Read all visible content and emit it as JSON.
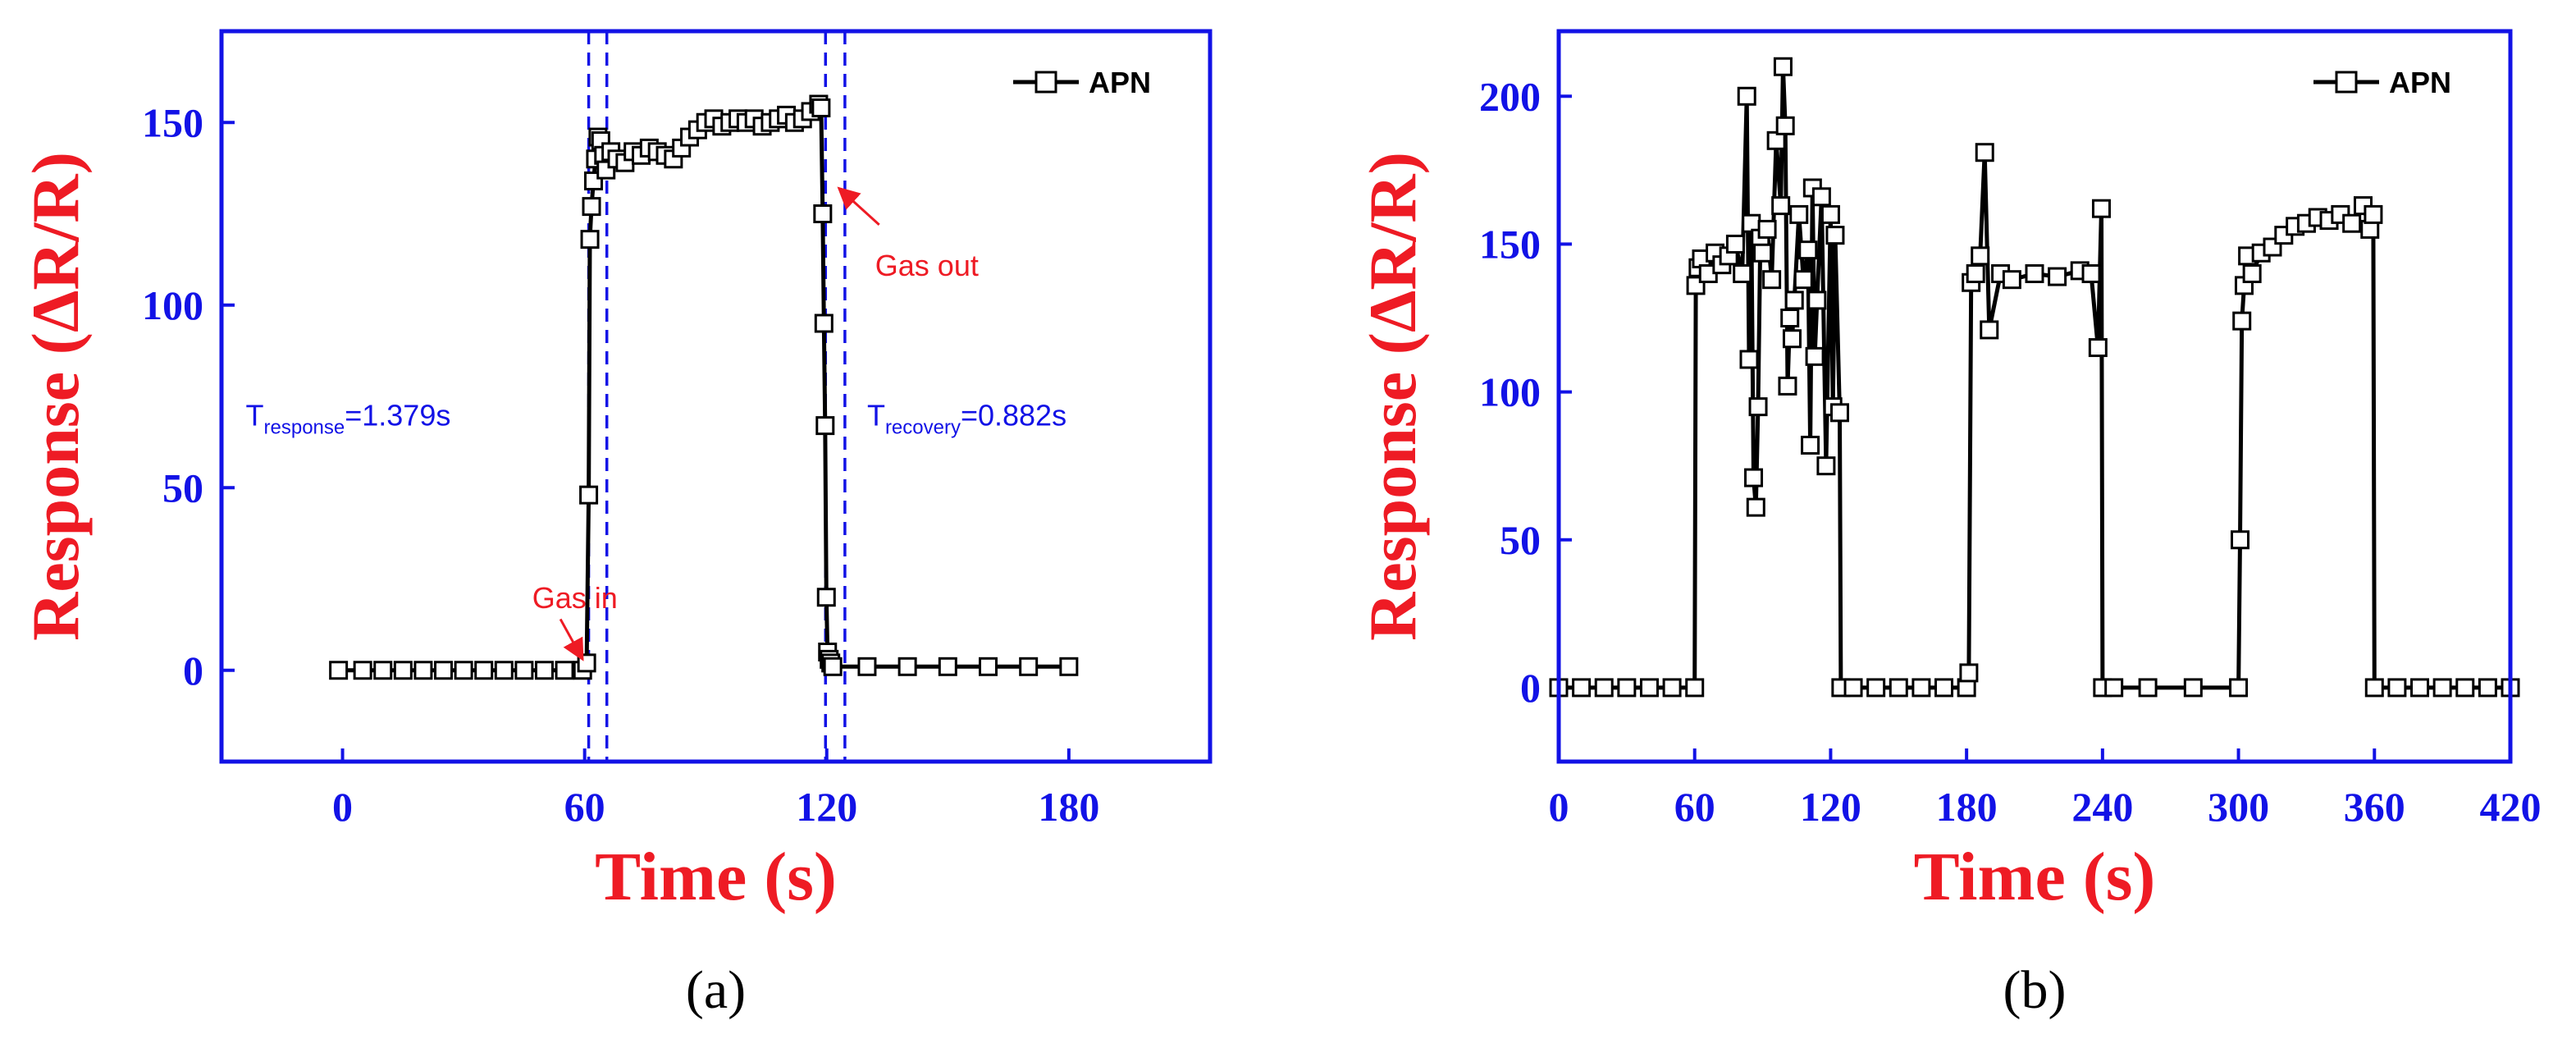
{
  "chart_data": [
    {
      "panel_label": "(a)",
      "type": "line",
      "xlabel": "Time (s)",
      "ylabel": "Response (ΔR/R)",
      "xlim": [
        -30,
        215
      ],
      "ylim": [
        -25,
        175
      ],
      "xticks": [
        0,
        60,
        120,
        180
      ],
      "yticks": [
        0,
        50,
        100,
        150
      ],
      "legend": {
        "placement": "top-right",
        "entries": [
          "APN"
        ]
      },
      "colors": {
        "axis": "#1212e6",
        "axis_title": "#ee1b24",
        "series": "#000000",
        "annotation_red": "#ee1b24",
        "annotation_blue": "#1212e6"
      },
      "series": [
        {
          "name": "APN",
          "x": [
            -1,
            5,
            10,
            15,
            20,
            25,
            30,
            35,
            40,
            45,
            50,
            55,
            59.5,
            60.5,
            61.0,
            61.3,
            61.7,
            62.2,
            62.7,
            63.3,
            64.0,
            64.7,
            65.3,
            66.5,
            68,
            70,
            72,
            74,
            76,
            78,
            80,
            82,
            84,
            86,
            88,
            90,
            92,
            94,
            96,
            98,
            100,
            102,
            104,
            106,
            108,
            110,
            112,
            114,
            116,
            118,
            118.6,
            119.0,
            119.3,
            119.6,
            119.9,
            120.2,
            120.6,
            121.0,
            121.5,
            130,
            140,
            150,
            160,
            170,
            180
          ],
          "y": [
            0,
            0,
            0,
            0,
            0,
            0,
            0,
            0,
            0,
            0,
            0,
            0,
            0,
            2,
            48,
            118,
            127,
            134,
            140,
            146,
            145,
            141,
            137,
            142,
            140,
            139,
            142,
            141,
            143,
            142,
            141,
            140,
            143,
            146,
            148,
            150,
            151,
            149,
            150,
            151,
            150,
            151,
            149,
            150,
            151,
            152,
            150,
            151,
            153,
            155,
            154,
            125,
            95,
            67,
            20,
            5,
            3,
            2,
            1,
            1,
            1,
            1,
            1,
            1,
            1
          ]
        }
      ],
      "annotations": [
        {
          "text": "Gas in",
          "x": 60
        },
        {
          "text": "Gas out",
          "x": 120
        },
        {
          "text_main": "T",
          "text_sub": "response",
          "text_value": "=1.379s"
        },
        {
          "text_main": "T",
          "text_sub": "recovery",
          "text_value": "=0.882s"
        }
      ],
      "vlines": [
        61,
        65.5,
        119.7,
        124.5
      ]
    },
    {
      "panel_label": "(b)",
      "type": "line",
      "xlabel": "Time (s)",
      "ylabel": "Response (ΔR/R)",
      "xlim": [
        0,
        420
      ],
      "ylim": [
        -25,
        222
      ],
      "xticks": [
        0,
        60,
        120,
        180,
        240,
        300,
        360,
        420
      ],
      "yticks": [
        0,
        50,
        100,
        150,
        200
      ],
      "legend": {
        "placement": "top-right",
        "entries": [
          "APN"
        ]
      },
      "colors": {
        "axis": "#1212e6",
        "axis_title": "#ee1b24",
        "series": "#000000"
      },
      "series": [
        {
          "name": "APN",
          "x": [
            0,
            10,
            20,
            30,
            40,
            50,
            60,
            60.5,
            61.5,
            63,
            66,
            69,
            72,
            75,
            78,
            81,
            83,
            84,
            85,
            86,
            87,
            88,
            89,
            90,
            92,
            94,
            96,
            98,
            99,
            100,
            101,
            102,
            103,
            104,
            106,
            108,
            110,
            111,
            112,
            113,
            114,
            116,
            118,
            120,
            121,
            122,
            124,
            124.5,
            130,
            140,
            150,
            160,
            170,
            180,
            181,
            182,
            184,
            186,
            188,
            190,
            195,
            200,
            210,
            220,
            230,
            235,
            238,
            239.5,
            240,
            245,
            260,
            280,
            300,
            300.7,
            301.5,
            302.5,
            304,
            306,
            310,
            315,
            320,
            325,
            330,
            335,
            340,
            345,
            350,
            355,
            358,
            359.5,
            360,
            370,
            380,
            390,
            400,
            410,
            420
          ],
          "y": [
            0,
            0,
            0,
            0,
            0,
            0,
            0,
            136,
            142,
            145,
            140,
            147,
            143,
            146,
            150,
            140,
            200,
            111,
            157,
            71,
            61,
            95,
            152,
            147,
            155,
            138,
            185,
            163,
            210,
            190,
            102,
            125,
            118,
            131,
            160,
            138,
            148,
            82,
            169,
            112,
            131,
            166,
            75,
            160,
            95,
            153,
            93,
            0,
            0,
            0,
            0,
            0,
            0,
            0,
            5,
            137,
            140,
            146,
            181,
            121,
            140,
            138,
            140,
            139,
            141,
            140,
            115,
            162,
            0,
            0,
            0,
            0,
            0,
            50,
            124,
            136,
            146,
            140,
            147,
            149,
            153,
            156,
            157,
            159,
            158,
            160,
            157,
            163,
            155,
            160,
            0,
            0,
            0,
            0,
            0,
            0,
            0
          ]
        }
      ]
    }
  ]
}
